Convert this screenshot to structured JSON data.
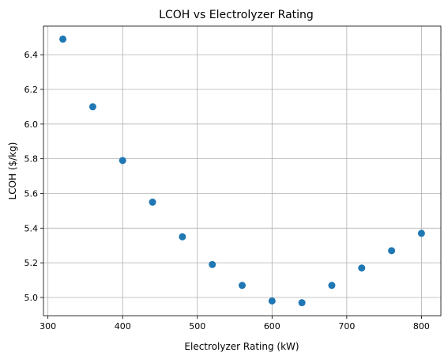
{
  "chart_data": {
    "type": "scatter",
    "title": "LCOH vs Electrolyzer Rating",
    "xlabel": "Electrolyzer Rating (kW)",
    "ylabel": "LCOH ($/kg)",
    "xlim": [
      294,
      826
    ],
    "ylim": [
      4.895,
      6.565
    ],
    "xticks": [
      300,
      400,
      500,
      600,
      700,
      800
    ],
    "yticks": [
      5.0,
      5.2,
      5.4,
      5.6,
      5.8,
      6.0,
      6.2,
      6.4
    ],
    "xtick_labels": [
      "300",
      "400",
      "500",
      "600",
      "700",
      "800"
    ],
    "ytick_labels": [
      "5.0",
      "5.2",
      "5.4",
      "5.6",
      "5.8",
      "6.0",
      "6.2",
      "6.4"
    ],
    "grid": true,
    "marker_color": "#1f77b4",
    "x": [
      320,
      360,
      400,
      440,
      480,
      520,
      560,
      600,
      640,
      680,
      720,
      760,
      800
    ],
    "y": [
      6.49,
      6.1,
      5.79,
      5.55,
      5.35,
      5.19,
      5.07,
      4.98,
      4.97,
      5.07,
      5.17,
      5.27,
      5.37
    ]
  }
}
